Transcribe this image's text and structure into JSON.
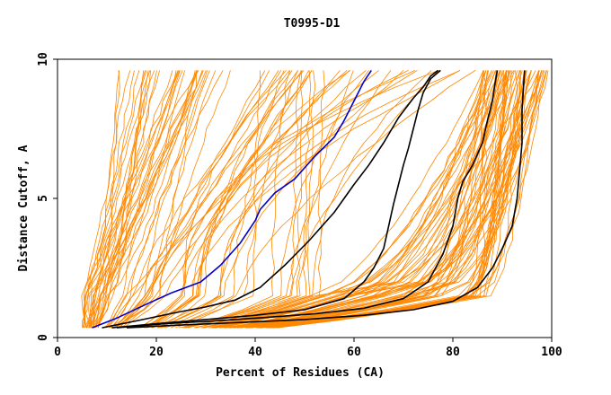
{
  "chart_data": {
    "type": "line",
    "title": "T0995-D1",
    "xlabel": "Percent of Residues (CA)",
    "ylabel": "Distance Cutoff, A",
    "xlim": [
      0,
      100
    ],
    "ylim": [
      0,
      10
    ],
    "x_ticks": [
      "0",
      "20",
      "40",
      "60",
      "80",
      "100"
    ],
    "y_ticks": [
      "0",
      "5",
      "10"
    ],
    "grid": false,
    "legend": "none",
    "colors": {
      "background_models": "#ff8800",
      "highlight_blue": "#0000cc",
      "highlight_black": "#000000"
    },
    "series": [
      {
        "color": "#0000cc",
        "x": [
          7,
          12,
          18,
          23,
          29,
          33,
          37,
          40,
          41,
          44,
          48,
          52,
          56,
          58,
          60,
          62,
          63.5
        ],
        "y": [
          0.35,
          0.7,
          1.2,
          1.6,
          2.0,
          2.6,
          3.4,
          4.2,
          4.6,
          5.2,
          5.7,
          6.5,
          7.2,
          7.8,
          8.5,
          9.2,
          9.6
        ]
      },
      {
        "color": "#000000",
        "x": [
          9,
          16,
          24,
          30,
          36,
          41,
          46,
          51,
          56,
          60,
          63,
          66,
          69,
          72,
          74,
          75.5,
          77
        ],
        "y": [
          0.35,
          0.6,
          0.9,
          1.1,
          1.35,
          1.8,
          2.6,
          3.5,
          4.5,
          5.5,
          6.2,
          7.0,
          7.9,
          8.6,
          9.0,
          9.4,
          9.6
        ]
      },
      {
        "color": "#000000",
        "x": [
          11,
          20,
          30,
          40,
          50,
          58,
          62,
          64,
          66,
          67,
          68,
          69,
          70,
          71,
          72,
          73,
          74,
          75.5,
          77.5
        ],
        "y": [
          0.35,
          0.5,
          0.65,
          0.8,
          1.0,
          1.4,
          2.0,
          2.5,
          3.2,
          4.0,
          4.8,
          5.5,
          6.2,
          6.8,
          7.5,
          8.2,
          8.8,
          9.3,
          9.6
        ]
      },
      {
        "color": "#000000",
        "x": [
          12,
          22,
          32,
          42,
          52,
          62,
          70,
          75,
          78,
          80,
          81,
          82,
          84,
          86,
          87,
          88,
          88.5,
          89
        ],
        "y": [
          0.35,
          0.5,
          0.6,
          0.72,
          0.85,
          1.05,
          1.4,
          2.0,
          3.0,
          4.0,
          5.0,
          5.6,
          6.2,
          7.0,
          7.8,
          8.5,
          9.1,
          9.6
        ]
      },
      {
        "color": "#000000",
        "x": [
          14,
          25,
          38,
          50,
          62,
          72,
          80,
          85,
          88,
          90,
          92,
          93,
          93.5,
          94,
          94,
          94.5
        ],
        "y": [
          0.35,
          0.45,
          0.55,
          0.65,
          0.8,
          1.0,
          1.3,
          1.8,
          2.5,
          3.2,
          4.0,
          5.0,
          6.0,
          7.0,
          8.2,
          9.6
        ]
      }
    ]
  }
}
